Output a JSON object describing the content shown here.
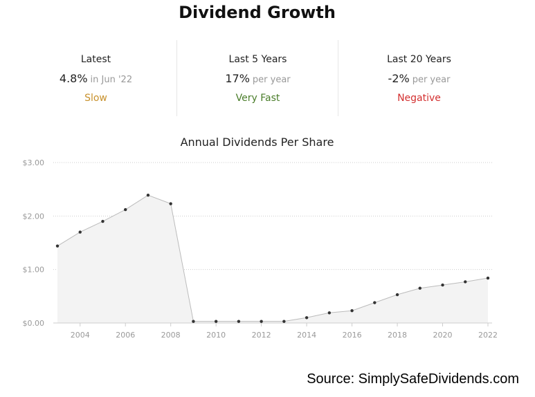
{
  "title": "Dividend Growth",
  "stats": [
    {
      "label": "Latest",
      "value": "4.8%",
      "period": "in Jun '22",
      "rating": "Slow",
      "rating_color": "#c8912c"
    },
    {
      "label": "Last 5 Years",
      "value": "17%",
      "period": "per year",
      "rating": "Very Fast",
      "rating_color": "#4a7d2a"
    },
    {
      "label": "Last 20 Years",
      "value": "-2%",
      "period": "per year",
      "rating": "Negative",
      "rating_color": "#d32f2f"
    }
  ],
  "chart_data": {
    "type": "area",
    "title": "Annual Dividends Per Share",
    "xlabel": "",
    "ylabel": "",
    "x": [
      2003,
      2004,
      2005,
      2006,
      2007,
      2008,
      2009,
      2010,
      2011,
      2012,
      2013,
      2014,
      2015,
      2016,
      2017,
      2018,
      2019,
      2020,
      2021,
      2022
    ],
    "values": [
      1.44,
      1.7,
      1.9,
      2.12,
      2.39,
      2.23,
      0.03,
      0.03,
      0.03,
      0.03,
      0.03,
      0.1,
      0.19,
      0.23,
      0.38,
      0.53,
      0.65,
      0.71,
      0.77,
      0.84
    ],
    "ylim": [
      0,
      3
    ],
    "xlim": [
      2003,
      2022
    ],
    "yticks": [
      0,
      1,
      2,
      3
    ],
    "ytick_labels": [
      "$0.00",
      "$1.00",
      "$2.00",
      "$3.00"
    ],
    "xticks": [
      2004,
      2006,
      2008,
      2010,
      2012,
      2014,
      2016,
      2018,
      2020,
      2022
    ],
    "xtick_labels": [
      "2004",
      "2006",
      "2008",
      "2010",
      "2012",
      "2014",
      "2016",
      "2018",
      "2020",
      "2022"
    ],
    "grid": true,
    "line_color": "#bbbbbb",
    "fill_color": "#f3f3f3",
    "marker_color": "#333333"
  },
  "source": "Source: SimplySafeDividends.com"
}
